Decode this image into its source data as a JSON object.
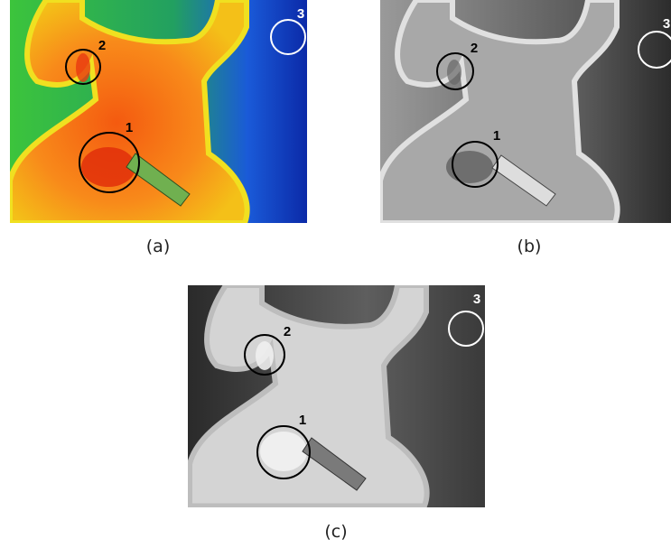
{
  "panels": [
    {
      "caption": "(a)",
      "markers": [
        {
          "label": "1"
        },
        {
          "label": "2"
        },
        {
          "label": "3"
        }
      ]
    },
    {
      "caption": "(b)",
      "markers": [
        {
          "label": "1"
        },
        {
          "label": "2"
        },
        {
          "label": "3"
        }
      ]
    },
    {
      "caption": "(c)",
      "markers": [
        {
          "label": "1"
        },
        {
          "label": "2"
        },
        {
          "label": "3"
        }
      ]
    }
  ]
}
